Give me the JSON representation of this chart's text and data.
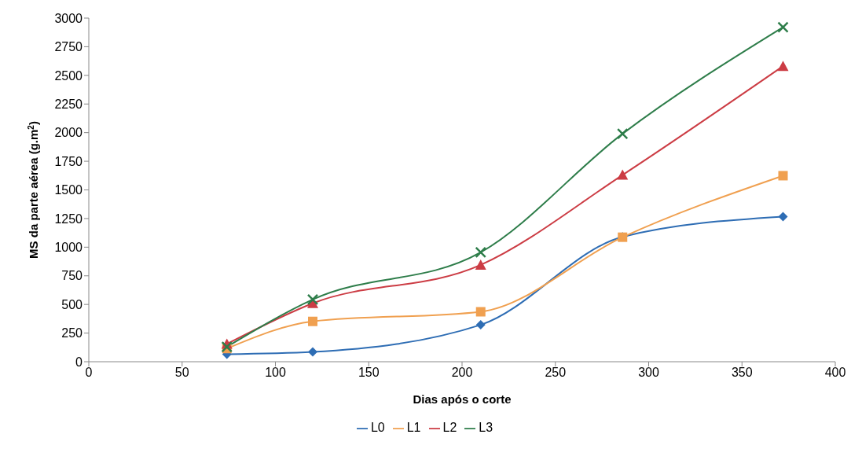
{
  "chart_data": {
    "type": "line",
    "xlabel": "Dias após o corte",
    "ylabel": "MS da parte aérea (g.m$^{2}$)",
    "x": [
      74,
      120,
      210,
      286,
      372
    ],
    "series": [
      {
        "name": "L0",
        "color": "#2e6db4",
        "marker": "diamond",
        "values": [
          65,
          85,
          322,
          1090,
          1266
        ]
      },
      {
        "name": "L1",
        "color": "#f0a050",
        "marker": "square",
        "values": [
          115,
          352,
          436,
          1087,
          1624
        ]
      },
      {
        "name": "L2",
        "color": "#cc3c44",
        "marker": "triangle",
        "values": [
          155,
          510,
          845,
          1630,
          2580
        ]
      },
      {
        "name": "L3",
        "color": "#2e7d4a",
        "marker": "cross",
        "values": [
          130,
          543,
          955,
          1990,
          2920
        ]
      }
    ],
    "xlim": [
      0,
      400
    ],
    "xticks": [
      0,
      50,
      100,
      150,
      200,
      250,
      300,
      350,
      400
    ],
    "ylim": [
      0,
      3000
    ],
    "yticks": [
      0,
      250,
      500,
      750,
      1000,
      1250,
      1500,
      1750,
      2000,
      2250,
      2500,
      2750,
      3000
    ],
    "grid": false,
    "legend": "bottom",
    "line_style": "solid"
  }
}
